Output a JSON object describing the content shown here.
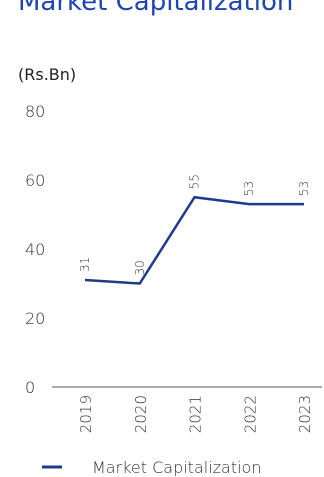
{
  "chart_data": {
    "type": "line",
    "title": "Market Capitalization",
    "y_label": "(Rs.Bn)",
    "categories": [
      "2019",
      "2020",
      "2021",
      "2022",
      "2023"
    ],
    "series": [
      {
        "name": "Market Capitalization",
        "color": "#1f3a8a",
        "values": [
          31,
          30,
          55,
          53,
          53
        ]
      }
    ],
    "ylim": [
      0,
      80
    ],
    "yticks": [
      0,
      20,
      40,
      60,
      80
    ],
    "grid": false,
    "legend": "bottom"
  }
}
